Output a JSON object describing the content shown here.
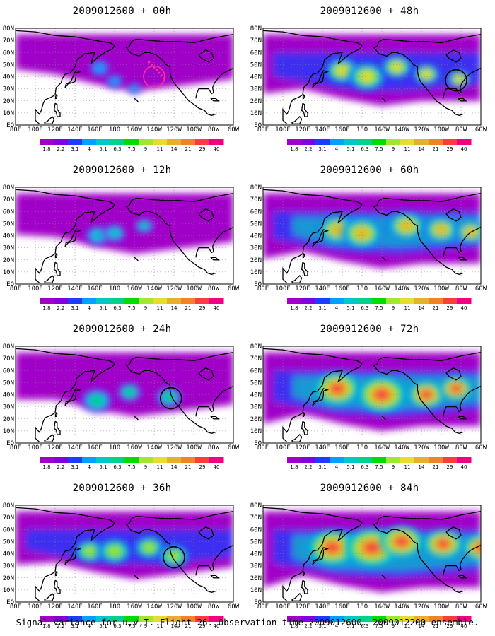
{
  "colorbar": {
    "labels": [
      "1.8",
      "2.2",
      "3.1",
      "4",
      "5.1",
      "6.3",
      "7.5",
      "9",
      "11",
      "14",
      "21",
      "29",
      "40"
    ],
    "colors": [
      "#a000c8",
      "#8200dc",
      "#1e3cff",
      "#00a0ff",
      "#00c8c8",
      "#00d28c",
      "#00dc00",
      "#a0e632",
      "#e6dc32",
      "#e6af2d",
      "#f08228",
      "#fa3c3c",
      "#f00082"
    ]
  },
  "axis_labels": {
    "lon": [
      "80E",
      "100E",
      "120E",
      "140E",
      "160E",
      "180",
      "160W",
      "140W",
      "120W",
      "100W",
      "80W",
      "60W"
    ],
    "lat": [
      "80N",
      "70N",
      "60N",
      "50N",
      "40N",
      "30N",
      "20N",
      "10N",
      "EQ"
    ]
  },
  "panels": [
    {
      "title": "2009012600 + 00h",
      "level": 0,
      "circle": [
        140,
        40
      ],
      "circle_color": "#ff3399",
      "blobs": [
        [
          165,
          47,
          0.9
        ],
        [
          180,
          36,
          0.7
        ],
        [
          200,
          30,
          0.5
        ]
      ]
    },
    {
      "title": "2009012600 + 48h",
      "level": 4,
      "circle": [
        85,
        37
      ],
      "circle_color": "#000000",
      "blobs": [
        [
          160,
          45,
          0.8
        ],
        [
          185,
          40,
          0.9
        ],
        [
          215,
          48,
          0.7
        ],
        [
          245,
          42,
          0.6
        ],
        [
          278,
          38,
          0.5
        ]
      ]
    },
    {
      "title": "2009012600 + 12h",
      "level": 1,
      "circle": null,
      "circle_color": "#000000",
      "blobs": [
        [
          163,
          40,
          0.9
        ],
        [
          180,
          42,
          0.8
        ],
        [
          210,
          48,
          0.6
        ]
      ]
    },
    {
      "title": "2009012600 + 60h",
      "level": 5,
      "circle": null,
      "circle_color": "#000000",
      "blobs": [
        [
          155,
          45,
          0.8
        ],
        [
          180,
          42,
          0.9
        ],
        [
          225,
          48,
          0.8
        ],
        [
          260,
          45,
          0.7
        ],
        [
          290,
          43,
          0.6
        ]
      ]
    },
    {
      "title": "2009012600 + 24h",
      "level": 2,
      "circle": [
        123,
        37
      ],
      "circle_color": "#000000",
      "blobs": [
        [
          162,
          35,
          1.0
        ],
        [
          195,
          42,
          0.7
        ],
        [
          235,
          38,
          0.8
        ]
      ]
    },
    {
      "title": "2009012600 + 72h",
      "level": 6,
      "circle": null,
      "circle_color": "#000000",
      "blobs": [
        [
          155,
          45,
          0.9
        ],
        [
          200,
          40,
          1.0
        ],
        [
          245,
          40,
          0.7
        ],
        [
          275,
          45,
          0.6
        ]
      ]
    },
    {
      "title": "2009012600 + 36h",
      "level": 3,
      "circle": [
        120,
        37
      ],
      "circle_color": "#000000",
      "blobs": [
        [
          155,
          42,
          0.8
        ],
        [
          180,
          42,
          0.9
        ],
        [
          215,
          45,
          0.8
        ],
        [
          240,
          38,
          0.8
        ]
      ]
    },
    {
      "title": "2009012600 + 84h",
      "level": 7,
      "circle": null,
      "circle_color": "#000000",
      "blobs": [
        [
          150,
          45,
          0.9
        ],
        [
          190,
          45,
          1.0
        ],
        [
          220,
          50,
          0.8
        ],
        [
          262,
          48,
          0.7
        ],
        [
          300,
          45,
          0.6
        ]
      ]
    }
  ],
  "footer": "Signal Variance for u,v,T. Flight 26. Observation time 2009012600. 2009012200 ensemble."
}
